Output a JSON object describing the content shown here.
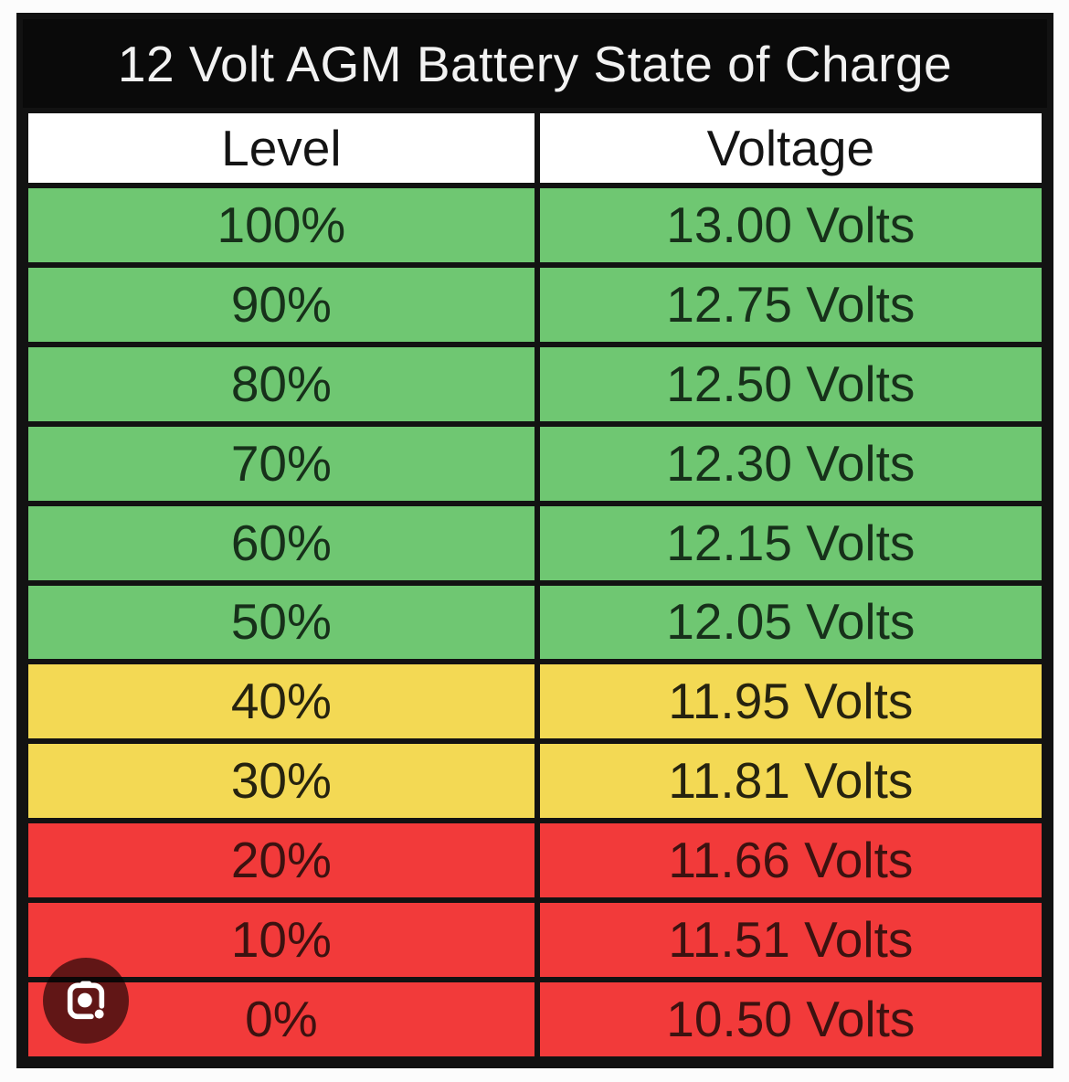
{
  "page": {
    "background": "#fcfcfc"
  },
  "chart_data": {
    "type": "table",
    "title": "12 Volt AGM Battery State of Charge",
    "columns": [
      "Level",
      "Voltage"
    ],
    "rows": [
      {
        "level": "100%",
        "voltage": "13.00 Volts",
        "color": "green"
      },
      {
        "level": "90%",
        "voltage": "12.75 Volts",
        "color": "green"
      },
      {
        "level": "80%",
        "voltage": "12.50 Volts",
        "color": "green"
      },
      {
        "level": "70%",
        "voltage": "12.30 Volts",
        "color": "green"
      },
      {
        "level": "60%",
        "voltage": "12.15 Volts",
        "color": "green"
      },
      {
        "level": "50%",
        "voltage": "12.05 Volts",
        "color": "green"
      },
      {
        "level": "40%",
        "voltage": "11.95 Volts",
        "color": "yellow"
      },
      {
        "level": "30%",
        "voltage": "11.81 Volts",
        "color": "yellow"
      },
      {
        "level": "20%",
        "voltage": "11.66 Volts",
        "color": "red"
      },
      {
        "level": "10%",
        "voltage": "11.51 Volts",
        "color": "red"
      },
      {
        "level": "0%",
        "voltage": "10.50 Volts",
        "color": "red"
      }
    ],
    "layout_hints": {
      "title_position": "top",
      "grid": "on",
      "column_split": "50/50"
    },
    "colors": {
      "green_rows": "#6fc772",
      "yellow_rows": "#f3d954",
      "red_rows": "#f23a3a",
      "title_bar_background": "#0a0a0a",
      "title_text": "#f2f2f2",
      "header_background": "#ffffff",
      "border": "#121212"
    }
  },
  "overlay": {
    "camera_button": {
      "icon": "lens-camera-icon",
      "background": "rgba(8,0,0,0.62)",
      "icon_color": "#ffffff"
    }
  }
}
